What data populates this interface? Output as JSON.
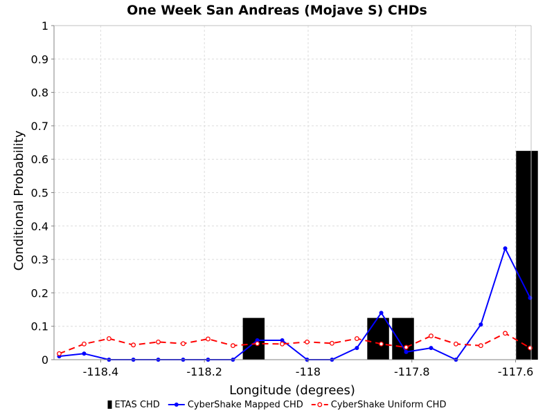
{
  "chart_data": {
    "type": "bar+line",
    "title": "One Week San Andreas (Mojave S) CHDs",
    "xlabel": "Longitude (degrees)",
    "ylabel": "Conditional Probability",
    "xlim": [
      -118.49,
      -117.57
    ],
    "ylim": [
      0,
      1
    ],
    "x_ticks": [
      -118.4,
      -118.2,
      -118,
      -117.8,
      -117.6
    ],
    "x_tick_labels": [
      "-118.4",
      "-118.2",
      "-118",
      "-117.8",
      "-117.6"
    ],
    "y_ticks": [
      0,
      0.1,
      0.2,
      0.3,
      0.4,
      0.5,
      0.6,
      0.7,
      0.8,
      0.9,
      1
    ],
    "y_tick_labels": [
      "0",
      "0.1",
      "0.2",
      "0.3",
      "0.4",
      "0.5",
      "0.6",
      "0.7",
      "0.8",
      "0.9",
      "1"
    ],
    "grid": true,
    "legend_placement": "bottom",
    "bar_width_deg": 0.042,
    "series": [
      {
        "name": "ETAS CHD",
        "kind": "bar",
        "color": "#000000",
        "x": [
          -118.105,
          -117.865,
          -117.817,
          -117.578
        ],
        "values": [
          0.125,
          0.125,
          0.125,
          0.625
        ]
      },
      {
        "name": "CyberShake Mapped CHD",
        "kind": "line",
        "color": "#0000ff",
        "dash": "solid",
        "marker": "filled-circle",
        "x": [
          -118.48,
          -118.432,
          -118.384,
          -118.337,
          -118.289,
          -118.241,
          -118.193,
          -118.145,
          -118.098,
          -118.05,
          -118.002,
          -117.954,
          -117.906,
          -117.859,
          -117.811,
          -117.763,
          -117.715,
          -117.667,
          -117.62,
          -117.572
        ],
        "values": [
          0.01,
          0.018,
          0.0,
          0.0,
          0.0,
          0.0,
          0.0,
          0.0,
          0.058,
          0.058,
          0.0,
          0.0,
          0.035,
          0.14,
          0.023,
          0.035,
          0.0,
          0.105,
          0.333,
          0.185
        ]
      },
      {
        "name": "CyberShake Uniform CHD",
        "kind": "line",
        "color": "#ff0000",
        "dash": "dashed",
        "marker": "open-circle",
        "x": [
          -118.48,
          -118.432,
          -118.384,
          -118.337,
          -118.289,
          -118.241,
          -118.193,
          -118.145,
          -118.098,
          -118.05,
          -118.002,
          -117.954,
          -117.906,
          -117.859,
          -117.811,
          -117.763,
          -117.715,
          -117.667,
          -117.62,
          -117.572
        ],
        "values": [
          0.018,
          0.047,
          0.063,
          0.044,
          0.053,
          0.048,
          0.062,
          0.042,
          0.048,
          0.047,
          0.053,
          0.049,
          0.063,
          0.047,
          0.037,
          0.071,
          0.047,
          0.042,
          0.079,
          0.035
        ]
      }
    ]
  }
}
